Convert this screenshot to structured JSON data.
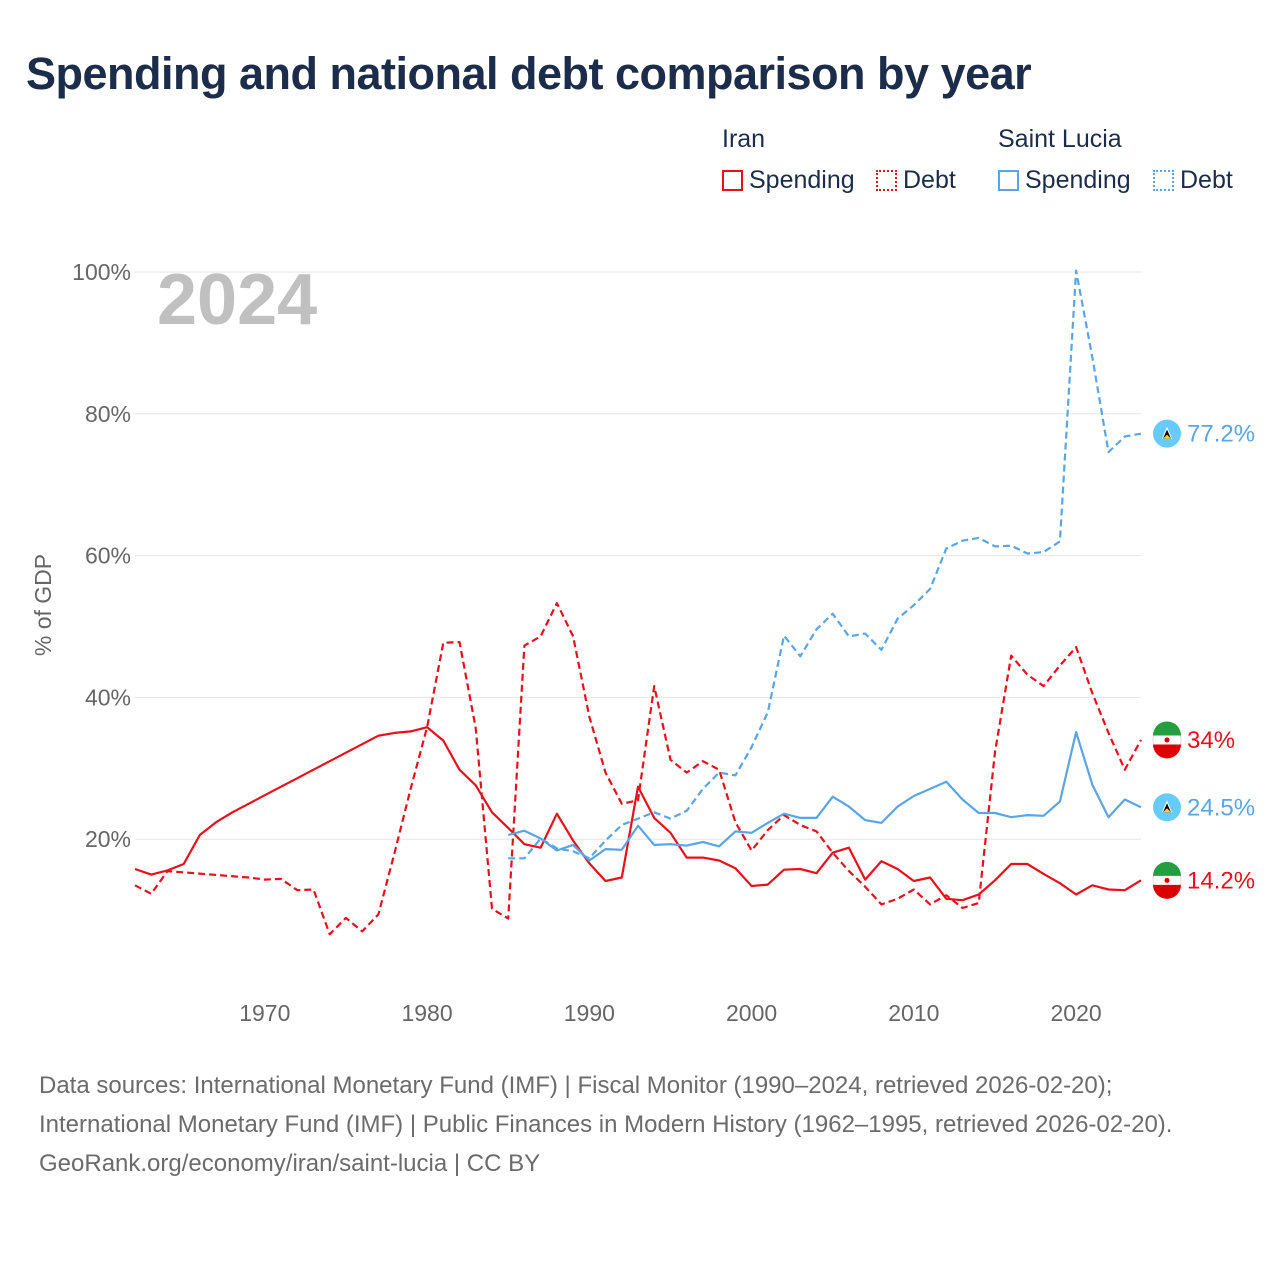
{
  "title": "Spending and national debt comparison by year",
  "legend": {
    "iran": {
      "title": "Iran",
      "spending": "Spending",
      "debt": "Debt"
    },
    "saint_lucia": {
      "title": "Saint Lucia",
      "spending": "Spending",
      "debt": "Debt"
    }
  },
  "colors": {
    "iran": "#e8101a",
    "saint_lucia": "#5aa5e6",
    "title": "#1b2d4a"
  },
  "footer": {
    "sources": "Data sources: International Monetary Fund (IMF) | Fiscal Monitor (1990–2024, retrieved 2026-02-20); International Monetary Fund (IMF) | Public Finances in Modern History (1962–1995, retrieved 2026-02-20).",
    "credit": "GeoRank.org/economy/iran/saint-lucia | CC BY"
  },
  "chart_data": {
    "type": "line",
    "year_label": "2024",
    "ylabel": "% of GDP",
    "xlim": [
      1962,
      2024
    ],
    "ylim": [
      0,
      100
    ],
    "x_ticks": [
      1970,
      1980,
      1990,
      2000,
      2010,
      2020
    ],
    "y_ticks": [
      20,
      40,
      60,
      80,
      100
    ],
    "y_tick_labels": [
      "20%",
      "40%",
      "60%",
      "80%",
      "100%"
    ],
    "series": [
      {
        "name": "Iran Spending",
        "country": "iran",
        "style": "solid",
        "end_label": "14.2%",
        "x": [
          1962,
          1963,
          1964,
          1965,
          1966,
          1967,
          1968,
          1969,
          1970,
          1971,
          1972,
          1973,
          1974,
          1975,
          1976,
          1977,
          1978,
          1979,
          1980,
          1981,
          1982,
          1983,
          1984,
          1985,
          1986,
          1987,
          1988,
          1989,
          1990,
          1991,
          1992,
          1993,
          1994,
          1995,
          1996,
          1997,
          1998,
          1999,
          2000,
          2001,
          2002,
          2003,
          2004,
          2005,
          2006,
          2007,
          2008,
          2009,
          2010,
          2011,
          2012,
          2013,
          2014,
          2015,
          2016,
          2017,
          2018,
          2019,
          2020,
          2021,
          2022,
          2023,
          2024
        ],
        "y": [
          15.8,
          15.0,
          15.6,
          16.5,
          20.6,
          22.4,
          23.8,
          25.0,
          26.2,
          27.4,
          28.6,
          29.8,
          31.0,
          32.2,
          33.4,
          34.6,
          35.0,
          35.2,
          35.8,
          33.9,
          29.8,
          27.6,
          23.8,
          21.6,
          19.3,
          18.8,
          23.6,
          19.8,
          16.6,
          14.1,
          14.6,
          27.4,
          23.0,
          20.9,
          17.4,
          17.4,
          17.0,
          15.9,
          13.4,
          13.6,
          15.7,
          15.8,
          15.2,
          18.1,
          18.8,
          14.3,
          16.9,
          15.8,
          14.1,
          14.6,
          11.6,
          11.4,
          12.2,
          14.2,
          16.5,
          16.5,
          15.1,
          13.8,
          12.2,
          13.5,
          12.9,
          12.8,
          14.2
        ]
      },
      {
        "name": "Iran Debt",
        "country": "iran",
        "style": "dashed",
        "end_label": "34%",
        "x": [
          1962,
          1963,
          1964,
          1969,
          1970,
          1971,
          1972,
          1973,
          1974,
          1975,
          1976,
          1977,
          1978,
          1979,
          1980,
          1981,
          1982,
          1983,
          1984,
          1985,
          1986,
          1987,
          1988,
          1989,
          1990,
          1991,
          1992,
          1993,
          1994,
          1995,
          1996,
          1997,
          1998,
          1999,
          2000,
          2001,
          2002,
          2003,
          2004,
          2005,
          2006,
          2007,
          2008,
          2009,
          2010,
          2011,
          2012,
          2013,
          2014,
          2015,
          2016,
          2017,
          2018,
          2019,
          2020,
          2021,
          2022,
          2023,
          2024
        ],
        "y": [
          13.5,
          12.3,
          15.5,
          14.6,
          14.3,
          14.4,
          12.8,
          12.9,
          6.6,
          8.9,
          7.0,
          9.4,
          18.1,
          27.2,
          35.8,
          47.7,
          47.8,
          35.7,
          10.2,
          8.8,
          47.3,
          48.6,
          53.3,
          48.6,
          37.3,
          29.4,
          25.0,
          25.5,
          41.6,
          31.2,
          29.4,
          31.0,
          29.8,
          22.4,
          18.4,
          21.3,
          23.4,
          22.0,
          21.1,
          18.1,
          15.5,
          13.3,
          10.8,
          11.6,
          12.9,
          10.8,
          12.1,
          10.3,
          11.0,
          32.3,
          45.9,
          43.2,
          41.6,
          44.5,
          47.1,
          40.6,
          35.0,
          29.8,
          34.0
        ]
      },
      {
        "name": "Saint Lucia Spending",
        "country": "saint_lucia",
        "style": "solid",
        "end_label": "24.5%",
        "x": [
          1985,
          1986,
          1987,
          1988,
          1989,
          1990,
          1991,
          1992,
          1993,
          1994,
          1995,
          1996,
          1997,
          1998,
          1999,
          2000,
          2001,
          2002,
          2003,
          2004,
          2005,
          2006,
          2007,
          2008,
          2009,
          2010,
          2011,
          2012,
          2013,
          2014,
          2015,
          2016,
          2017,
          2018,
          2019,
          2020,
          2021,
          2022,
          2023,
          2024
        ],
        "y": [
          20.6,
          21.2,
          20.1,
          18.4,
          19.2,
          17.0,
          18.6,
          18.5,
          21.9,
          19.2,
          19.3,
          19.1,
          19.6,
          19.0,
          21.1,
          20.9,
          22.3,
          23.6,
          23.0,
          23.0,
          26.0,
          24.6,
          22.7,
          22.3,
          24.6,
          26.1,
          27.1,
          28.1,
          25.6,
          23.7,
          23.7,
          23.1,
          23.4,
          23.3,
          25.3,
          35.1,
          27.7,
          23.1,
          25.6,
          24.5
        ]
      },
      {
        "name": "Saint Lucia Debt",
        "country": "saint_lucia",
        "style": "dashed",
        "end_label": "77.2%",
        "x": [
          1985,
          1986,
          1987,
          1988,
          1989,
          1990,
          1991,
          1992,
          1993,
          1994,
          1995,
          1996,
          1997,
          1998,
          1999,
          2000,
          2001,
          2002,
          2003,
          2004,
          2005,
          2006,
          2007,
          2008,
          2009,
          2010,
          2011,
          2012,
          2013,
          2014,
          2015,
          2016,
          2017,
          2018,
          2019,
          2020,
          2021,
          2022,
          2023,
          2024
        ],
        "y": [
          17.3,
          17.3,
          20.1,
          18.7,
          18.3,
          17.3,
          19.8,
          22.0,
          22.9,
          23.8,
          22.9,
          24.0,
          27.1,
          29.4,
          29.0,
          33.0,
          37.9,
          48.7,
          45.8,
          49.6,
          51.8,
          48.6,
          49.0,
          46.7,
          51.1,
          53.0,
          55.3,
          61.0,
          62.1,
          62.5,
          61.3,
          61.4,
          60.3,
          60.5,
          62.0,
          100.2,
          88.0,
          74.6,
          76.8,
          77.2
        ]
      }
    ]
  }
}
